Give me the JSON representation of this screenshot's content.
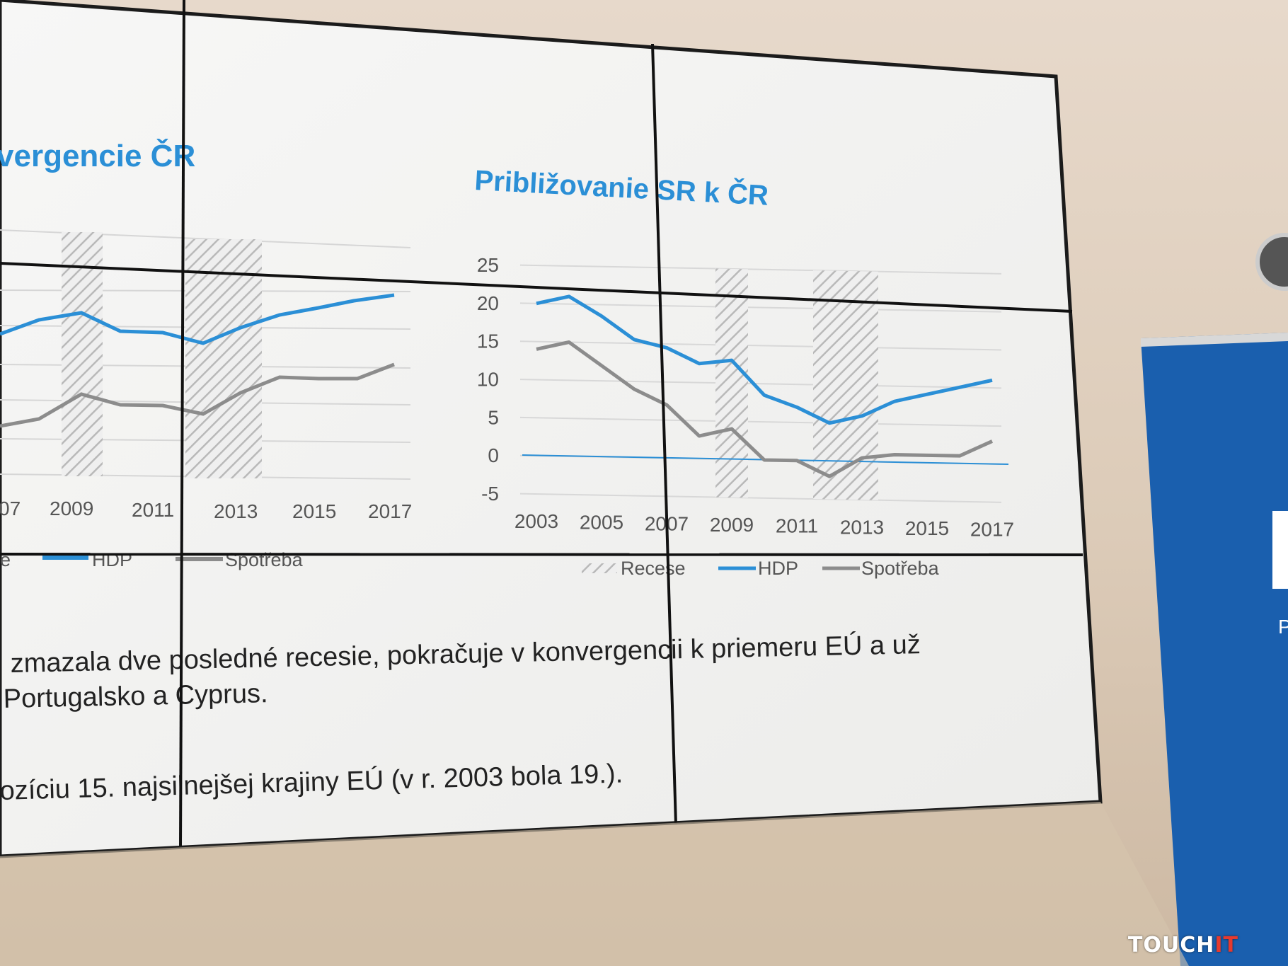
{
  "left_chart": {
    "title_fragment": "vergencie ČR",
    "x_ticks": [
      "07",
      "2009",
      "2011",
      "2013",
      "2015",
      "2017"
    ],
    "legend": [
      "e",
      "HDP",
      "Spotřeba"
    ]
  },
  "right_chart": {
    "title": "Približovanie SR k ČR",
    "legend": [
      "Recese",
      "HDP",
      "Spotřeba"
    ]
  },
  "chart_data": [
    {
      "type": "line",
      "title": "Približovanie SR k ČR",
      "x": [
        2003,
        2004,
        2005,
        2006,
        2007,
        2008,
        2009,
        2010,
        2011,
        2012,
        2013,
        2014,
        2015,
        2016,
        2017
      ],
      "x_tick_labels": [
        "2003",
        "2005",
        "2007",
        "2009",
        "2011",
        "2013",
        "2015",
        "2017"
      ],
      "y_tick_labels": [
        "25",
        "20",
        "15",
        "10",
        "5",
        "0",
        "-5"
      ],
      "ylim": [
        -5,
        25
      ],
      "grid": true,
      "legend_position": "bottom",
      "recession_bands": [
        [
          2008.5,
          2009.5
        ],
        [
          2011.5,
          2013.5
        ]
      ],
      "series": [
        {
          "name": "HDP",
          "color": "#2b8fd6",
          "values": [
            20,
            21,
            18.5,
            15.5,
            14.5,
            12.5,
            13,
            8.5,
            7,
            5,
            6,
            8,
            9,
            10,
            11
          ]
        },
        {
          "name": "Spotřeba",
          "color": "#8c8c8c",
          "values": [
            14,
            15,
            12,
            9,
            7,
            3,
            4,
            0,
            0,
            -2,
            0.5,
            1,
            1,
            1,
            3
          ]
        }
      ]
    }
  ],
  "body_text": {
    "line1": "zmazala dve posledné recesie, pokračuje v konvergencii k priemeru EÚ a už",
    "line2": "Portugalsko a Cyprus.",
    "line3": "ozíciu 15. najsilnejšej krajiny EÚ (v r. 2003 bola 19.)."
  },
  "colors": {
    "hdp": "#2b8fd6",
    "spotreba": "#8c8c8c",
    "title": "#2b8fd6",
    "watermark_accent": "#e53a2f"
  },
  "watermark": {
    "part1": "TOUCH",
    "part2": "IT"
  }
}
